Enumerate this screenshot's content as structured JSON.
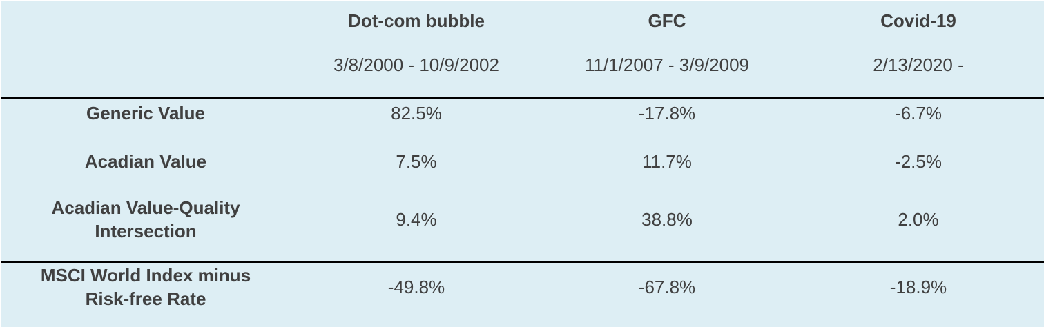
{
  "table": {
    "columns": [
      {
        "name": "Dot-com bubble",
        "period": "3/8/2000 - 10/9/2002"
      },
      {
        "name": "GFC",
        "period": "11/1/2007 - 3/9/2009"
      },
      {
        "name": "Covid-19",
        "period": "2/13/2020 -"
      }
    ],
    "rows": [
      {
        "label": "Generic Value",
        "values": [
          "82.5%",
          "-17.8%",
          "-6.7%"
        ]
      },
      {
        "label": "Acadian Value",
        "values": [
          "7.5%",
          "11.7%",
          "-2.5%"
        ]
      },
      {
        "label": "Acadian Value-Quality Intersection",
        "values": [
          "9.4%",
          "38.8%",
          "2.0%"
        ]
      },
      {
        "label": "MSCI World Index minus Risk-free Rate",
        "values": [
          "-49.8%",
          "-67.8%",
          "-18.9%"
        ]
      }
    ]
  },
  "colors": {
    "background": "#ddeef4",
    "text": "#404040",
    "rule": "#000000"
  }
}
